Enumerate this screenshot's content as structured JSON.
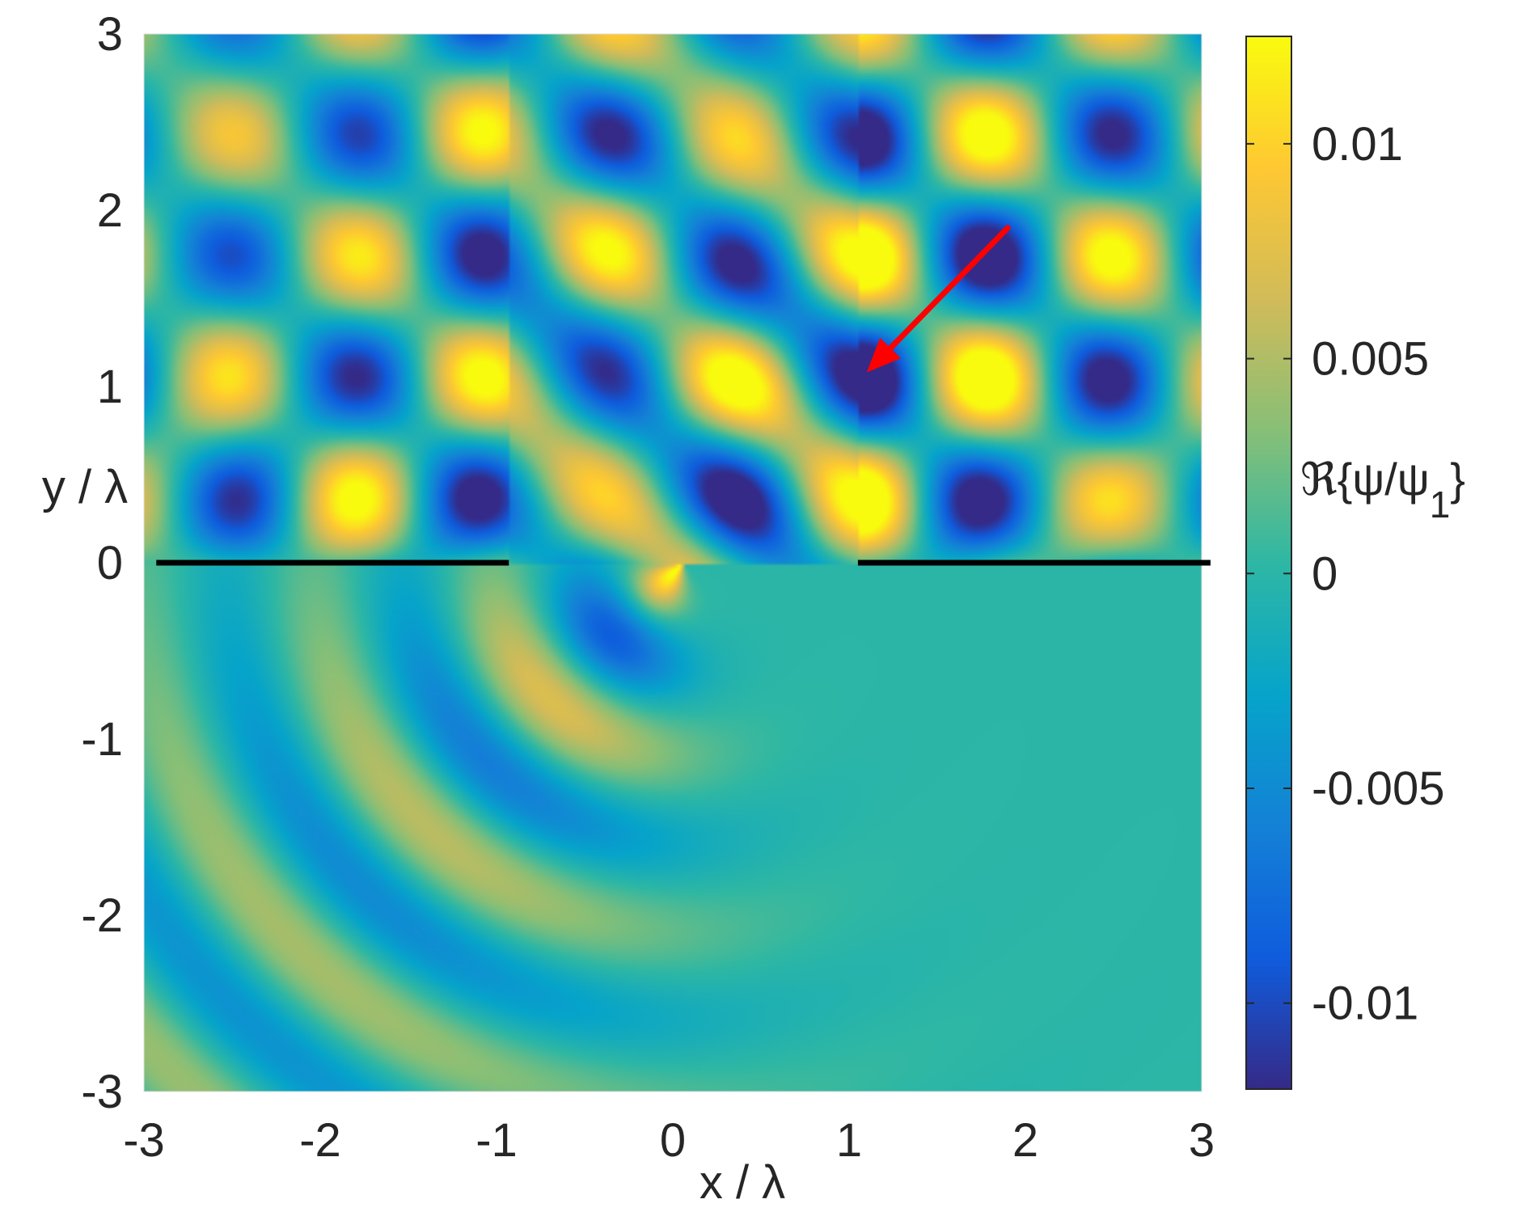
{
  "chart_data": {
    "type": "heatmap",
    "title": "",
    "xlabel": "x / λ",
    "ylabel": "y / λ",
    "xlim": [
      -3,
      3
    ],
    "ylim": [
      -3,
      3
    ],
    "x_ticks": [
      "-3",
      "-2",
      "-1",
      "0",
      "1",
      "2",
      "3"
    ],
    "y_ticks": [
      "3",
      "2",
      "1",
      "0",
      "-1",
      "-2",
      "-3"
    ],
    "colorbar": {
      "label_prefix": "ℜ{ψ/ψ",
      "label_subscript": "1",
      "label_suffix": "}",
      "range": [
        -0.012,
        0.0125
      ],
      "ticks": [
        "0.01",
        "0.005",
        "0",
        "-0.005",
        "-0.01"
      ],
      "tick_values": [
        0.01,
        0.005,
        0,
        -0.005,
        -0.01
      ],
      "colormap": "parula"
    },
    "barriers": [
      {
        "x_start": -2.93,
        "x_end": -0.93,
        "y": 0
      },
      {
        "x_start": 1.05,
        "x_end": 3.05,
        "y": 0
      }
    ],
    "annotation_arrow": {
      "from": [
        1.9,
        1.9
      ],
      "to": [
        1.1,
        1.08
      ],
      "color": "#ff0000"
    },
    "field_description": "Real part of wave field: plane wave incident from upper right on a screen at y=0 with an aperture between x≈-0.93 and x≈1.05, producing interference above and a diffracted circular wave below; peak value ≈0.0125 near (0.8, 0.85), minimum ≈-0.012 near (0.75, 1.5)"
  }
}
